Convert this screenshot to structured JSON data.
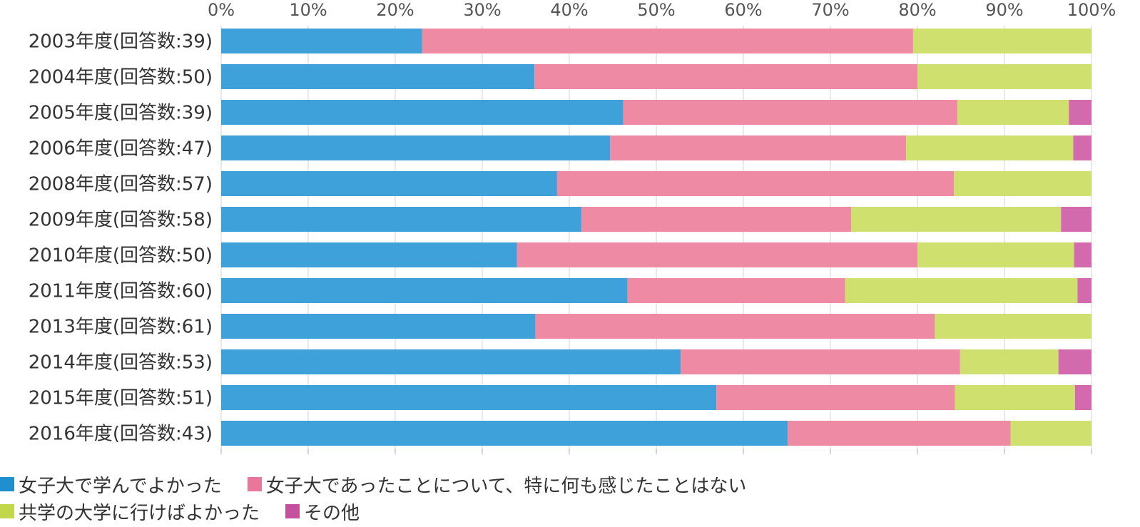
{
  "chart_data": {
    "type": "bar",
    "orientation": "horizontal",
    "stacked": true,
    "xlim": [
      0,
      100
    ],
    "x_ticks": [
      "0%",
      "10%",
      "20%",
      "30%",
      "40%",
      "50%",
      "60%",
      "70%",
      "80%",
      "90%",
      "100%"
    ],
    "grid": true,
    "legend_position": "bottom",
    "categories": [
      "2003年度(回答数:39)",
      "2004年度(回答数:50)",
      "2005年度(回答数:39)",
      "2006年度(回答数:47)",
      "2008年度(回答数:57)",
      "2009年度(回答数:58)",
      "2010年度(回答数:50)",
      "2011年度(回答数:60)",
      "2013年度(回答数:61)",
      "2014年度(回答数:53)",
      "2015年度(回答数:51)",
      "2016年度(回答数:43)"
    ],
    "series": [
      {
        "name": "女子大で学んでよかった",
        "color": "#3fa1da",
        "values": [
          23.1,
          36.0,
          46.2,
          44.7,
          38.6,
          41.4,
          34.0,
          46.7,
          36.1,
          52.8,
          56.9,
          65.1
        ]
      },
      {
        "name": "女子大であったことについて、特に何も感じたことはない",
        "color": "#ef8aa5",
        "values": [
          56.4,
          44.0,
          38.4,
          34.0,
          45.6,
          31.0,
          46.0,
          25.0,
          45.9,
          32.1,
          27.4,
          25.6
        ]
      },
      {
        "name": "共学の大学に行けばよかった",
        "color": "#cfe06f",
        "values": [
          20.5,
          20.0,
          12.8,
          19.2,
          15.8,
          24.1,
          18.0,
          26.7,
          18.0,
          11.3,
          13.8,
          9.3
        ]
      },
      {
        "name": "その他",
        "color": "#d26aad",
        "values": [
          0,
          0,
          2.6,
          2.1,
          0,
          3.5,
          2.0,
          1.6,
          0,
          3.8,
          1.9,
          0
        ]
      }
    ]
  },
  "legend": [
    {
      "label": "女子大で学んでよかった",
      "color": "#1f8fcf"
    },
    {
      "label": "女子大であったことについて、特に何も感じたことはない",
      "color": "#e8779a"
    },
    {
      "label": "共学の大学に行けばよかった",
      "color": "#c2d84a"
    },
    {
      "label": "その他",
      "color": "#c4519e"
    }
  ]
}
